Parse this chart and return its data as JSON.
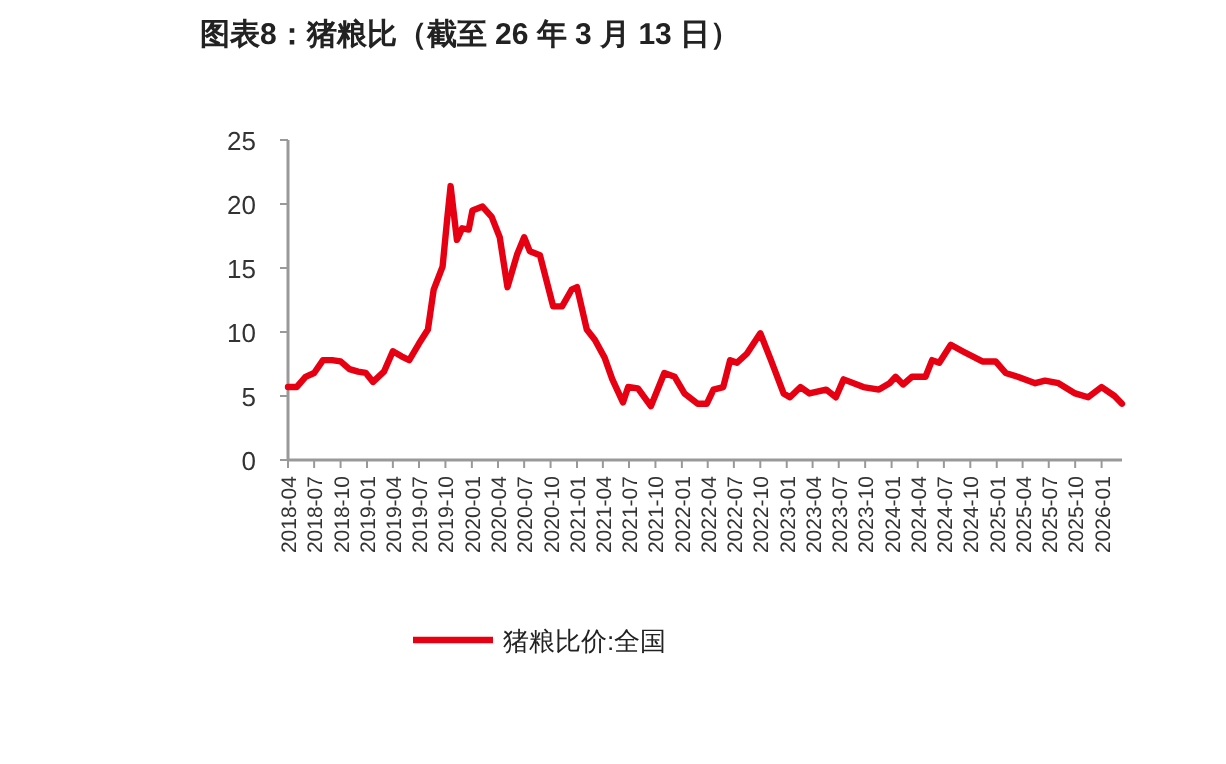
{
  "chart_data": {
    "type": "line",
    "title": "图表8：猪粮比（截至 26 年 3 月 13 日）",
    "x": [
      "2018-04-01",
      "2018-05-01",
      "2018-06-01",
      "2018-07-01",
      "2018-08-01",
      "2018-09-01",
      "2018-10-01",
      "2018-11-01",
      "2018-12-01",
      "2018-12-28",
      "2019-01-22",
      "2019-03-01",
      "2019-04-01",
      "2019-05-01",
      "2019-05-28",
      "2019-07-01",
      "2019-08-01",
      "2019-08-21",
      "2019-09-21",
      "2019-10-07",
      "2019-10-19",
      "2019-11-10",
      "2019-11-28",
      "2019-12-21",
      "2020-01-03",
      "2020-02-07",
      "2020-03-10",
      "2020-04-07",
      "2020-05-04",
      "2020-06-07",
      "2020-07-01",
      "2020-07-21",
      "2020-08-25",
      "2020-10-10",
      "2020-11-10",
      "2020-12-13",
      "2021-01-01",
      "2021-02-04",
      "2021-03-04",
      "2021-04-07",
      "2021-05-04",
      "2021-06-10",
      "2021-06-28",
      "2021-08-01",
      "2021-09-15",
      "2021-11-01",
      "2021-12-07",
      "2022-01-10",
      "2022-02-25",
      "2022-03-29",
      "2022-04-21",
      "2022-05-25",
      "2022-06-18",
      "2022-07-12",
      "2022-08-15",
      "2022-10-01",
      "2022-11-07",
      "2022-12-21",
      "2023-01-12",
      "2023-02-18",
      "2023-03-21",
      "2023-05-18",
      "2023-06-21",
      "2023-07-18",
      "2023-09-25",
      "2023-11-18",
      "2023-12-25",
      "2024-01-15",
      "2024-02-10",
      "2024-03-12",
      "2024-04-28",
      "2024-05-21",
      "2024-06-15",
      "2024-07-25",
      "2024-09-04",
      "2024-11-12",
      "2024-12-28",
      "2025-02-01",
      "2025-03-15",
      "2025-05-15",
      "2025-06-18",
      "2025-08-04",
      "2025-10-01",
      "2025-11-15",
      "2026-01-01",
      "2026-02-15",
      "2026-03-13"
    ],
    "series": [
      {
        "name": "猪粮比价:全国",
        "color": "#e60012",
        "values": [
          5.7,
          5.7,
          6.5,
          6.8,
          7.8,
          7.8,
          7.7,
          7.1,
          6.9,
          6.8,
          6.1,
          6.9,
          8.5,
          8.1,
          7.8,
          9.1,
          10.2,
          13.3,
          15.1,
          18.8,
          21.4,
          17.2,
          18.1,
          18.0,
          19.5,
          19.8,
          19.0,
          17.4,
          13.5,
          16.1,
          17.4,
          16.3,
          16.0,
          12.0,
          12.0,
          13.3,
          13.5,
          10.2,
          9.4,
          8.0,
          6.3,
          4.5,
          5.7,
          5.6,
          4.2,
          6.8,
          6.5,
          5.2,
          4.4,
          4.4,
          5.5,
          5.7,
          7.8,
          7.6,
          8.3,
          9.9,
          7.8,
          5.2,
          4.9,
          5.7,
          5.2,
          5.5,
          4.9,
          6.3,
          5.7,
          5.5,
          6.0,
          6.5,
          5.9,
          6.5,
          6.5,
          7.8,
          7.6,
          9.0,
          8.5,
          7.7,
          7.7,
          6.8,
          6.5,
          6.0,
          6.2,
          6.0,
          5.2,
          4.9,
          5.7,
          5.0,
          4.4
        ]
      }
    ],
    "xlim": [
      "2018-04-01",
      "2026-03-13"
    ],
    "xticks": [
      "2018-04",
      "2018-07",
      "2018-10",
      "2019-01",
      "2019-04",
      "2019-07",
      "2019-10",
      "2020-01",
      "2020-04",
      "2020-07",
      "2020-10",
      "2021-01",
      "2021-04",
      "2021-07",
      "2021-10",
      "2022-01",
      "2022-04",
      "2022-07",
      "2022-10",
      "2023-01",
      "2023-04",
      "2023-07",
      "2023-10",
      "2024-01",
      "2024-04",
      "2024-07",
      "2024-10",
      "2025-01",
      "2025-04",
      "2025-07",
      "2025-10",
      "2026-01"
    ],
    "ylim": [
      0,
      25
    ],
    "yticks": [
      0,
      5,
      10,
      15,
      20,
      25
    ],
    "legend": "bottom"
  }
}
